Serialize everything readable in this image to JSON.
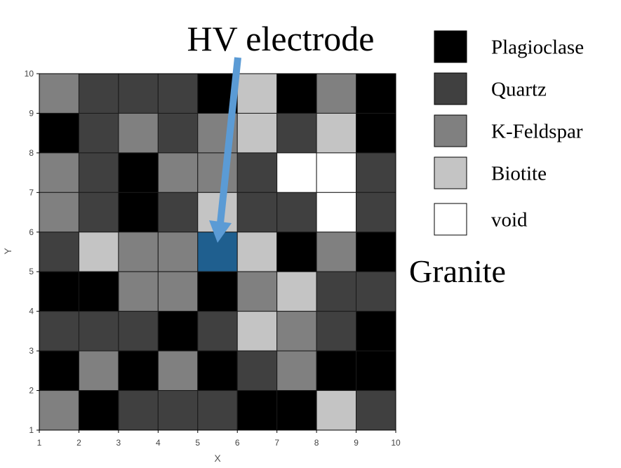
{
  "title": "HV electrode",
  "sample_label": "Granite",
  "axes": {
    "xlabel": "X",
    "ylabel": "Y",
    "xlim": [
      1,
      10
    ],
    "ylim": [
      1,
      10
    ],
    "xticks": [
      "1",
      "2",
      "3",
      "4",
      "5",
      "6",
      "7",
      "8",
      "9",
      "10"
    ],
    "yticks": [
      "1",
      "2",
      "3",
      "4",
      "5",
      "6",
      "7",
      "8",
      "9",
      "10"
    ]
  },
  "legend": [
    {
      "label": "Plagioclase",
      "color": "#000000"
    },
    {
      "label": "Quartz",
      "color": "#404040"
    },
    {
      "label": "K-Feldspar",
      "color": "#808080"
    },
    {
      "label": "Biotite",
      "color": "#c4c4c4"
    },
    {
      "label": "void",
      "color": "#ffffff"
    }
  ],
  "electrode": {
    "color": "#1f5f8f",
    "arrow_color": "#5b9bd5",
    "x": 5,
    "y": 5
  },
  "chart_data": {
    "type": "heatmap",
    "x_range": [
      1,
      10
    ],
    "y_range": [
      1,
      10
    ],
    "categories": [
      "Plagioclase",
      "Quartz",
      "K-Feldspar",
      "Biotite",
      "void"
    ],
    "rows_top_to_bottom": [
      [
        "K-Feldspar",
        "Quartz",
        "Quartz",
        "Quartz",
        "Plagioclase",
        "Biotite",
        "Plagioclase",
        "K-Feldspar",
        "Plagioclase"
      ],
      [
        "Plagioclase",
        "Quartz",
        "K-Feldspar",
        "Quartz",
        "K-Feldspar",
        "Biotite",
        "Quartz",
        "Biotite",
        "Plagioclase"
      ],
      [
        "K-Feldspar",
        "Quartz",
        "Plagioclase",
        "K-Feldspar",
        "K-Feldspar",
        "Quartz",
        "void",
        "void",
        "Quartz"
      ],
      [
        "K-Feldspar",
        "Quartz",
        "Plagioclase",
        "Quartz",
        "Biotite",
        "Quartz",
        "Quartz",
        "void",
        "Quartz"
      ],
      [
        "Quartz",
        "Biotite",
        "K-Feldspar",
        "K-Feldspar",
        "electrode",
        "Biotite",
        "Plagioclase",
        "K-Feldspar",
        "Plagioclase"
      ],
      [
        "Plagioclase",
        "Plagioclase",
        "K-Feldspar",
        "K-Feldspar",
        "Plagioclase",
        "K-Feldspar",
        "Biotite",
        "Quartz",
        "Quartz"
      ],
      [
        "Quartz",
        "Quartz",
        "Quartz",
        "Plagioclase",
        "Quartz",
        "Biotite",
        "K-Feldspar",
        "Quartz",
        "Plagioclase"
      ],
      [
        "Plagioclase",
        "K-Feldspar",
        "Plagioclase",
        "K-Feldspar",
        "Plagioclase",
        "Quartz",
        "K-Feldspar",
        "Plagioclase",
        "Plagioclase"
      ],
      [
        "K-Feldspar",
        "Plagioclase",
        "Quartz",
        "Quartz",
        "Quartz",
        "Plagioclase",
        "Plagioclase",
        "Biotite",
        "Quartz"
      ]
    ]
  }
}
